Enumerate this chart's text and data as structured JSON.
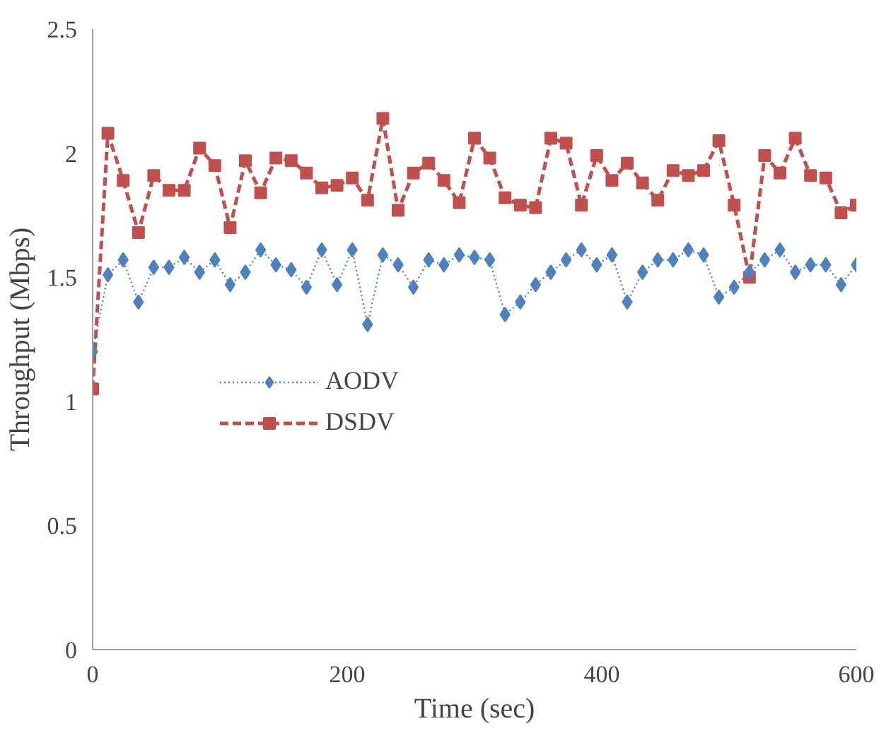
{
  "chart_data": {
    "type": "line",
    "xlabel": "Time (sec)",
    "ylabel": "Throughput (Mbps)",
    "x": [
      0,
      12,
      24,
      36,
      48,
      60,
      72,
      84,
      96,
      108,
      120,
      132,
      144,
      156,
      168,
      180,
      192,
      204,
      216,
      228,
      240,
      252,
      264,
      276,
      288,
      300,
      312,
      324,
      336,
      348,
      360,
      372,
      384,
      396,
      408,
      420,
      432,
      444,
      456,
      468,
      480,
      492,
      504,
      516,
      528,
      540,
      552,
      564,
      576,
      588,
      600
    ],
    "xlim": [
      0,
      600
    ],
    "ylim": [
      0,
      2.5
    ],
    "xticks": [
      0,
      200,
      400,
      600
    ],
    "yticks": [
      0,
      0.5,
      1,
      1.5,
      2,
      2.5
    ],
    "grid": false,
    "legend": "left",
    "series": [
      {
        "name": "AODV",
        "color": "#4f81bd",
        "marker": "diamond",
        "line_style": "dotted",
        "values": [
          1.2,
          1.51,
          1.57,
          1.4,
          1.54,
          1.54,
          1.58,
          1.52,
          1.57,
          1.47,
          1.52,
          1.61,
          1.55,
          1.53,
          1.46,
          1.61,
          1.47,
          1.61,
          1.31,
          1.59,
          1.55,
          1.46,
          1.57,
          1.55,
          1.59,
          1.58,
          1.57,
          1.35,
          1.4,
          1.47,
          1.52,
          1.57,
          1.61,
          1.55,
          1.59,
          1.4,
          1.52,
          1.57,
          1.57,
          1.61,
          1.59,
          1.42,
          1.46,
          1.52,
          1.57,
          1.61,
          1.52,
          1.55,
          1.55,
          1.47,
          1.55
        ]
      },
      {
        "name": "DSDV",
        "color": "#c0504d",
        "marker": "square",
        "line_style": "dashed",
        "values": [
          1.05,
          2.08,
          1.89,
          1.68,
          1.91,
          1.85,
          1.85,
          2.02,
          1.95,
          1.7,
          1.97,
          1.84,
          1.98,
          1.97,
          1.92,
          1.86,
          1.87,
          1.9,
          1.81,
          2.14,
          1.77,
          1.92,
          1.96,
          1.89,
          1.8,
          2.06,
          1.98,
          1.82,
          1.79,
          1.78,
          2.06,
          2.04,
          1.79,
          1.99,
          1.89,
          1.96,
          1.88,
          1.81,
          1.93,
          1.91,
          1.93,
          2.05,
          1.79,
          1.5,
          1.99,
          1.92,
          2.06,
          1.91,
          1.9,
          1.76,
          1.79
        ]
      }
    ]
  }
}
